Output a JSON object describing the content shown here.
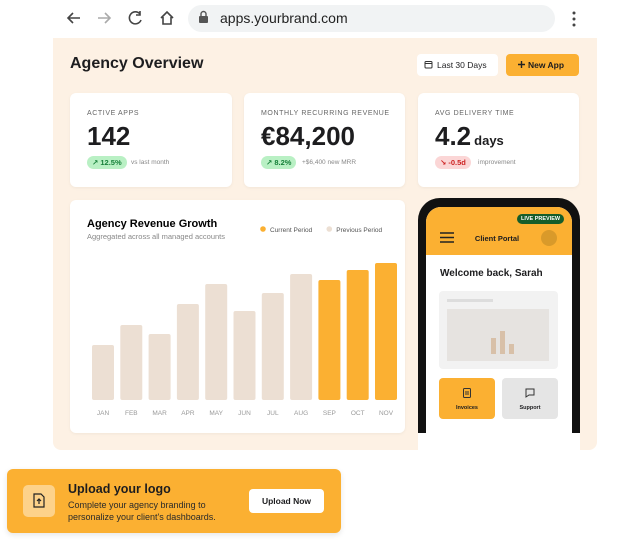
{
  "browser": {
    "url": "apps.yourbrand.com"
  },
  "header": {
    "title": "Agency Overview",
    "date_range": "Last 30 Days",
    "new_app": "New App"
  },
  "kpis": [
    {
      "label": "ACTIVE APPS",
      "value": "142",
      "badge": "12.5%",
      "note": "vs last month"
    },
    {
      "label": "MONTHLY RECURRING REVENUE",
      "value": "€84,200",
      "badge": "8.2%",
      "note": "+$6,400 new MRR"
    },
    {
      "label": "AVG DELIVERY TIME",
      "value": "4.2",
      "unit": "days",
      "badge": "-0.5d",
      "note": "improvement"
    }
  ],
  "chart_data": {
    "type": "bar",
    "title": "Agency Revenue Growth",
    "subtitle": "Aggregated across all managed accounts",
    "categories": [
      "JAN",
      "FEB",
      "MAR",
      "APR",
      "MAY",
      "JUN",
      "JUL",
      "AUG",
      "SEP",
      "OCT",
      "NOV"
    ],
    "series": [
      {
        "name": "Current Period",
        "color": "#fbb032",
        "values": [
          null,
          null,
          null,
          null,
          null,
          null,
          null,
          null,
          120,
          130,
          137
        ]
      },
      {
        "name": "Previous Period",
        "color": "#ecdfd3",
        "values": [
          55,
          75,
          66,
          96,
          116,
          89,
          107,
          126,
          null,
          null,
          null
        ]
      }
    ],
    "ylim": [
      0,
      150
    ]
  },
  "preview": {
    "badge": "LIVE PREVIEW",
    "title": "Client Portal",
    "welcome": "Welcome back, Sarah",
    "tiles": [
      "Invoices",
      "Support"
    ]
  },
  "banner": {
    "title": "Upload your logo",
    "text": [
      "Complete your agency branding to",
      "personalize your client's dashboards."
    ],
    "button": "Upload Now"
  }
}
